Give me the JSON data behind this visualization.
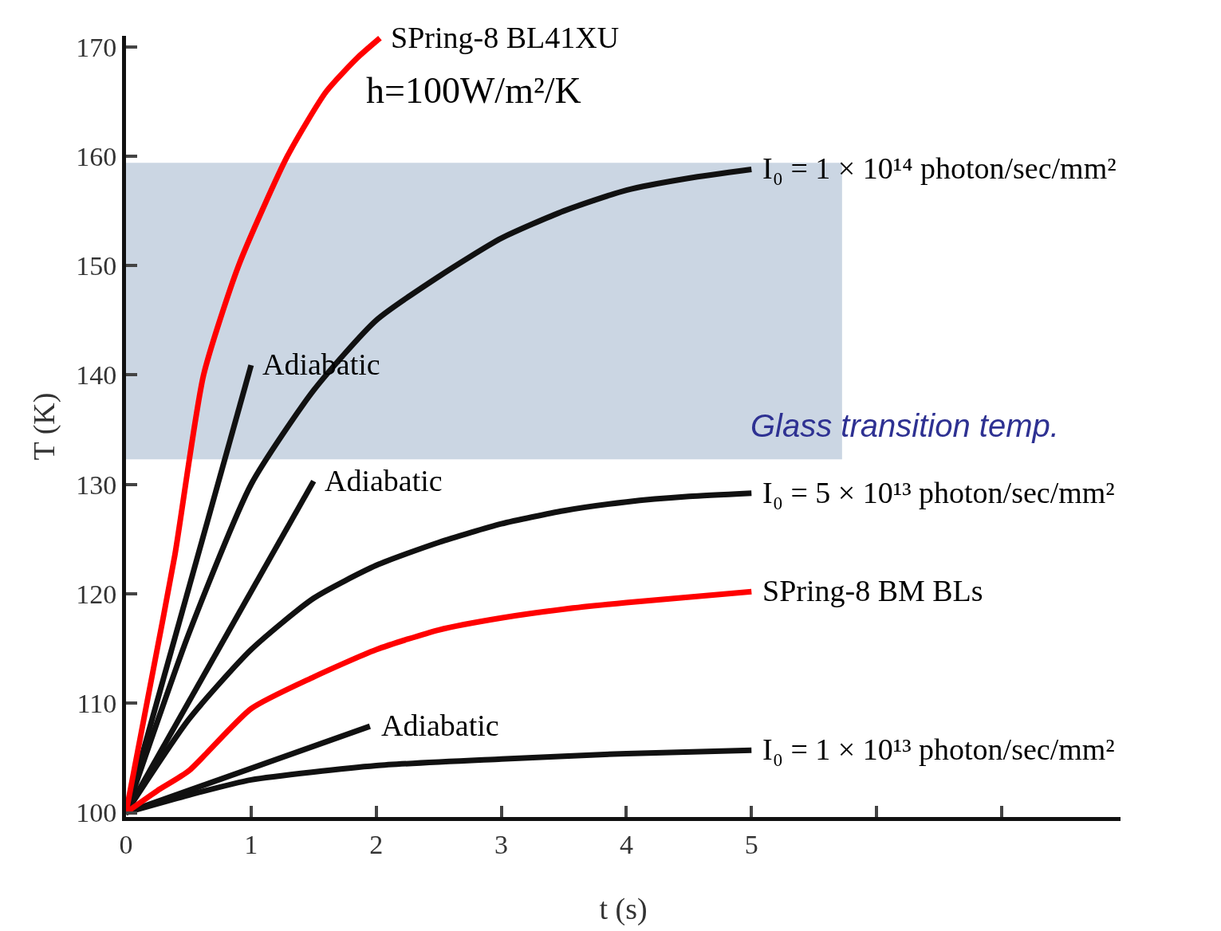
{
  "chart_data": {
    "type": "line",
    "xlabel": "t (s)",
    "ylabel": "T (K)",
    "xlim": [
      0,
      7.95
    ],
    "ylim": [
      99.6,
      171
    ],
    "xticks": [
      0,
      1,
      2,
      3,
      4,
      5,
      {
        "value": 6,
        "label": null
      },
      {
        "value": 7,
        "label": null
      }
    ],
    "yticks": [
      100,
      110,
      120,
      130,
      140,
      150,
      160,
      170
    ],
    "grid": false,
    "legend": false,
    "marker": "none",
    "line_style": "solid",
    "annotations": [
      "h=100W/m²/K"
    ],
    "bands": [
      {
        "axis": "y",
        "from": 132.3,
        "to": 159.4,
        "label": "Glass transition temp.",
        "color": "#c5d1e0"
      }
    ],
    "series": [
      {
        "name": "I₀ = 1 × 10¹⁴ photon/sec/mm²",
        "color": "#111111",
        "x": [
          0,
          0.5,
          1,
          1.5,
          2,
          2.5,
          3,
          3.5,
          4,
          4.5,
          5
        ],
        "values": [
          100,
          116.3,
          130,
          138.6,
          145,
          149,
          152.5,
          155,
          156.9,
          158,
          158.8
        ]
      },
      {
        "name": "Adiabatic",
        "color": "#111111",
        "x": [
          0,
          1
        ],
        "values": [
          100,
          140.9
        ]
      },
      {
        "name": "I₀ = 5 × 10¹³ photon/sec/mm²",
        "color": "#111111",
        "x": [
          0,
          0.5,
          1,
          1.5,
          2,
          2.5,
          3,
          3.5,
          4,
          4.5,
          5
        ],
        "values": [
          100,
          108.5,
          114.9,
          119.6,
          122.6,
          124.7,
          126.4,
          127.6,
          128.4,
          128.9,
          129.2
        ]
      },
      {
        "name": "Adiabatic",
        "color": "#111111",
        "x": [
          0,
          1.5
        ],
        "values": [
          100,
          130.3
        ]
      },
      {
        "name": "I₀ = 1 × 10¹³ photon/sec/mm²",
        "color": "#111111",
        "x": [
          0,
          0.5,
          1,
          2,
          3,
          4,
          5
        ],
        "values": [
          100,
          101.6,
          103,
          104.3,
          104.9,
          105.4,
          105.7
        ]
      },
      {
        "name": "Adiabatic",
        "color": "#111111",
        "x": [
          0,
          1.95
        ],
        "values": [
          100,
          107.9
        ]
      },
      {
        "name": "SPring-8 BL41XU",
        "color": "#ff0000",
        "x": [
          0,
          0.2,
          0.39,
          0.62,
          0.9,
          1.29,
          1.6,
          1.85,
          2.03
        ],
        "values": [
          100,
          112,
          123.5,
          140,
          150,
          160,
          165.9,
          169,
          170.8
        ]
      },
      {
        "name": "SPring-8 BM BLs",
        "color": "#ff0000",
        "x": [
          0,
          0.25,
          0.5,
          1,
          1.5,
          2,
          2.5,
          3,
          3.5,
          4,
          5
        ],
        "values": [
          100,
          102,
          103.8,
          109.5,
          112.4,
          114.9,
          116.7,
          117.8,
          118.6,
          119.2,
          120.2
        ]
      }
    ]
  }
}
